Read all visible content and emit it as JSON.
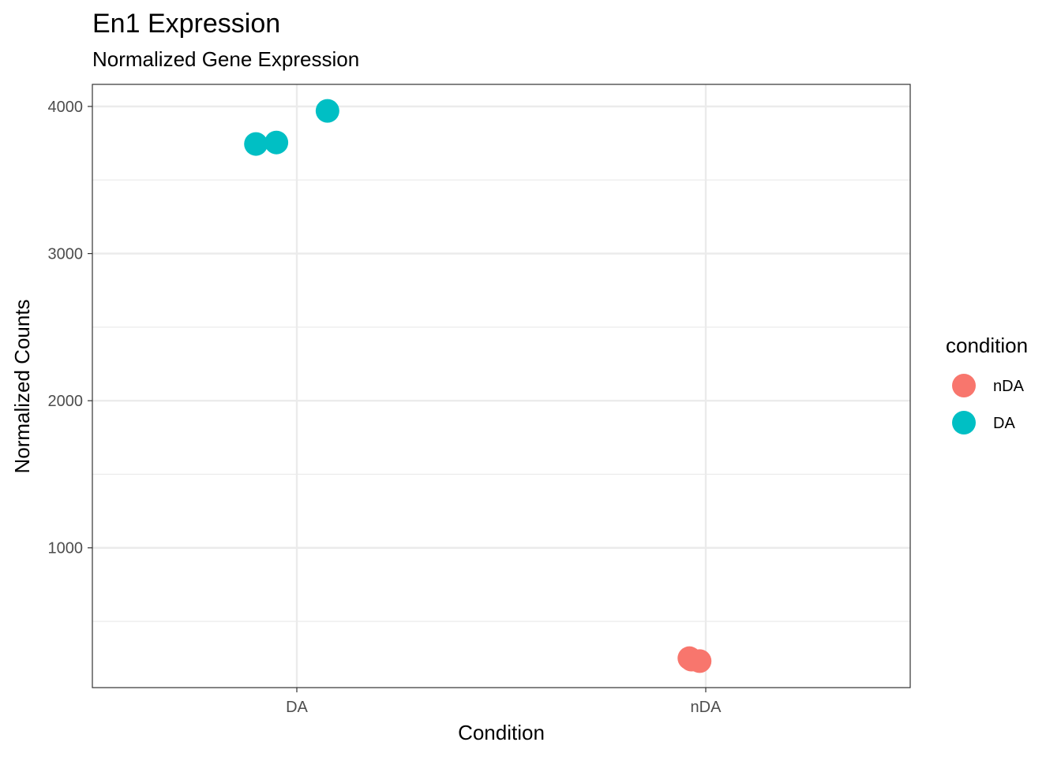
{
  "chart_data": {
    "type": "scatter",
    "title": "En1 Expression",
    "subtitle": "Normalized Gene Expression",
    "xlabel": "Condition",
    "ylabel": "Normalized Counts",
    "categories": [
      "DA",
      "nDA"
    ],
    "ylim": [
      50,
      4150
    ],
    "yticks": [
      1000,
      2000,
      3000,
      4000
    ],
    "grid": true,
    "legend": {
      "title": "condition",
      "position": "right",
      "entries": [
        {
          "label": "nDA",
          "color": "#F8766D"
        },
        {
          "label": "DA",
          "color": "#00BFC4"
        }
      ]
    },
    "series": [
      {
        "name": "nDA",
        "color": "#F8766D",
        "points": [
          {
            "x": "nDA",
            "y": 250
          },
          {
            "x": "nDA",
            "y": 240
          },
          {
            "x": "nDA",
            "y": 230
          }
        ]
      },
      {
        "name": "DA",
        "color": "#00BFC4",
        "points": [
          {
            "x": "DA",
            "y": 3745
          },
          {
            "x": "DA",
            "y": 3755
          },
          {
            "x": "DA",
            "y": 3970
          }
        ]
      }
    ]
  }
}
